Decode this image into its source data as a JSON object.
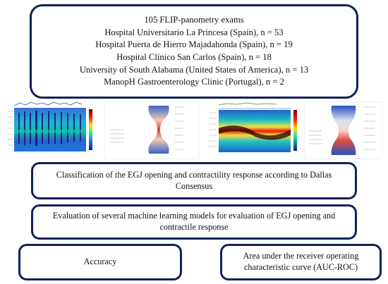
{
  "header": {
    "lines": [
      "105 FLIP-panometry exams",
      "Hospital Universitario La Princesa (Spain), n = 53",
      "Hospital Puerta de Hierro Majadahonda (Spain), n = 19",
      "Hospital Clínico San Carlos (Spain), n = 18",
      "University of South Alabama (United States of America), n = 13",
      "ManopH Gastroenterology Clinic (Portugal), n = 2"
    ]
  },
  "steps": {
    "classification": "Classification of the EGJ opening and contractility response according to Dallas Consensus",
    "evaluation": "Evaluation of several machine learning models for evaluation of EGJ opening and contractile response"
  },
  "outcomes": {
    "accuracy": "Accuracy",
    "auc": "Area under the receiver operating characteristic curve (AUC-ROC)"
  },
  "colors": {
    "border": "#11205a"
  }
}
